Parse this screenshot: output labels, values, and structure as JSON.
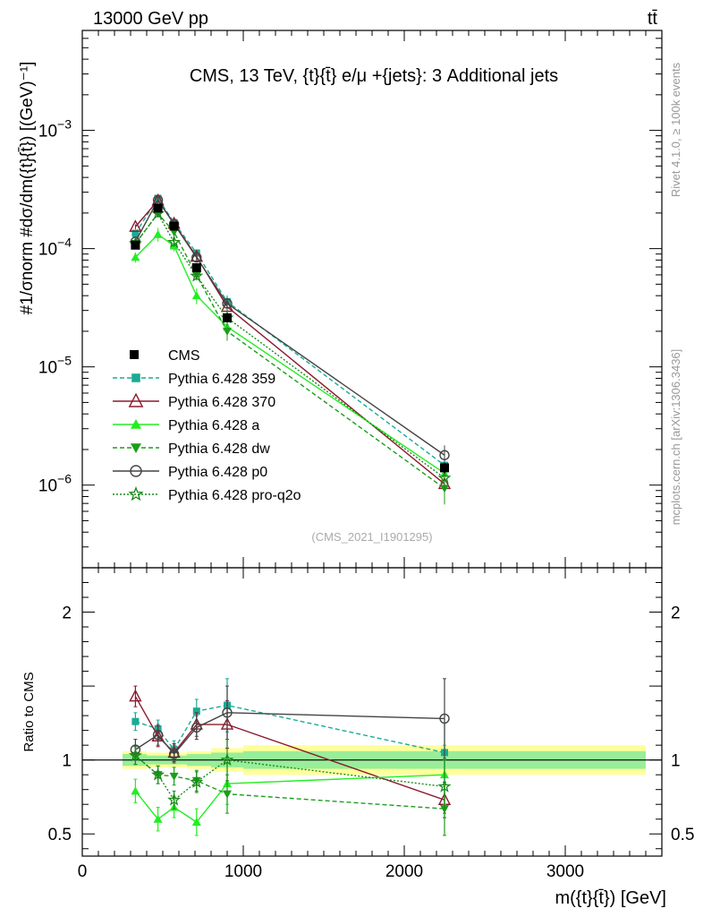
{
  "header": {
    "energy_label": "13000 GeV pp",
    "process_label": "tt̄"
  },
  "side": {
    "rivet_label": "Rivet 4.1.0, ≥ 100k events",
    "mcplots_label": "mcplots.cern.ch [arXiv:1306.3436]"
  },
  "chart_data": {
    "type": "line",
    "title": "CMS, 13 TeV, {t}{t̄} e/μ +{jets}: 3 Additional jets",
    "analysis_id": "(CMS_2021_I1901295)",
    "ylabel": "#1/σnorm #dσ/dm({t}{t̄}) [(GeV)⁻¹]",
    "ratio_ylabel": "Ratio to CMS",
    "xlabel": "m({t}{t̄}) [GeV]",
    "xlim": [
      0,
      3600
    ],
    "ylim": [
      2e-07,
      0.007
    ],
    "ratio_ylim": [
      0.35,
      2.3
    ],
    "x_ticks": [
      {
        "value": 0,
        "label": "0"
      },
      {
        "value": 1000,
        "label": "1000"
      },
      {
        "value": 2000,
        "label": "2000"
      },
      {
        "value": 3000,
        "label": "3000"
      }
    ],
    "y_ticks": [
      {
        "value": 0.001,
        "base": "10",
        "exp": "−3"
      },
      {
        "value": 0.0001,
        "base": "10",
        "exp": "−4"
      },
      {
        "value": 1e-05,
        "base": "10",
        "exp": "−5"
      },
      {
        "value": 1e-06,
        "base": "10",
        "exp": "−6"
      }
    ],
    "ratio_ticks": [
      {
        "value": 0.5,
        "label": "0.5"
      },
      {
        "value": 1,
        "label": "1"
      },
      {
        "value": 2,
        "label": "2"
      }
    ],
    "bins": [
      {
        "low": 250,
        "high": 400
      },
      {
        "low": 400,
        "high": 550
      },
      {
        "low": 550,
        "high": 650
      },
      {
        "low": 650,
        "high": 800
      },
      {
        "low": 800,
        "high": 1000
      },
      {
        "low": 1000,
        "high": 3500
      }
    ],
    "data": {
      "name": "CMS",
      "x": [
        330,
        470,
        570,
        710,
        900,
        2250
      ],
      "y": [
        0.000107,
        0.00022,
        0.000155,
        6.9e-05,
        2.6e-05,
        1.4e-06
      ],
      "rel_err_inner": [
        0.04,
        0.03,
        0.03,
        0.04,
        0.05,
        0.06
      ],
      "rel_err_outer": [
        0.06,
        0.05,
        0.05,
        0.06,
        0.08,
        0.1
      ]
    },
    "series": [
      {
        "name": "Pythia 6.428 359",
        "color": "#1aab94",
        "dash": "5,3",
        "marker": "square",
        "ratio": [
          1.26,
          1.21,
          1.07,
          1.33,
          1.37,
          1.05
        ],
        "ratio_err": [
          0.06,
          0.06,
          0.06,
          0.08,
          0.18,
          0.2
        ]
      },
      {
        "name": "Pythia 6.428 370",
        "color": "#8b1a2e",
        "dash": "",
        "marker": "triangle-open",
        "ratio": [
          1.43,
          1.16,
          1.05,
          1.24,
          1.24,
          0.73
        ],
        "ratio_err": [
          0.07,
          0.07,
          0.06,
          0.08,
          0.16,
          0.12
        ]
      },
      {
        "name": "Pythia 6.428 a",
        "color": "#22ee22",
        "dash": "",
        "marker": "triangle",
        "ratio": [
          0.79,
          0.6,
          0.68,
          0.58,
          0.84,
          0.9
        ],
        "ratio_err": [
          0.08,
          0.08,
          0.07,
          0.09,
          0.14,
          0.2
        ]
      },
      {
        "name": "Pythia 6.428 dw",
        "color": "#1a9e1a",
        "dash": "5,3",
        "marker": "triangle-down",
        "ratio": [
          1.03,
          0.9,
          0.89,
          0.86,
          0.77,
          0.67
        ],
        "ratio_err": [
          0.06,
          0.06,
          0.06,
          0.07,
          0.13,
          0.18
        ]
      },
      {
        "name": "Pythia 6.428 p0",
        "color": "#444444",
        "dash": "",
        "marker": "circle-open",
        "ratio": [
          1.07,
          1.17,
          1.04,
          1.22,
          1.32,
          1.28
        ],
        "ratio_err": [
          0.07,
          0.07,
          0.06,
          0.08,
          0.18,
          0.27
        ]
      },
      {
        "name": "Pythia 6.428 pro-q2o",
        "color": "#1a8a1a",
        "dash": "2,2",
        "marker": "star",
        "ratio": [
          1.03,
          0.9,
          0.73,
          0.85,
          1.0,
          0.82
        ],
        "ratio_err": [
          0.06,
          0.06,
          0.06,
          0.07,
          0.14,
          0.18
        ]
      }
    ]
  }
}
